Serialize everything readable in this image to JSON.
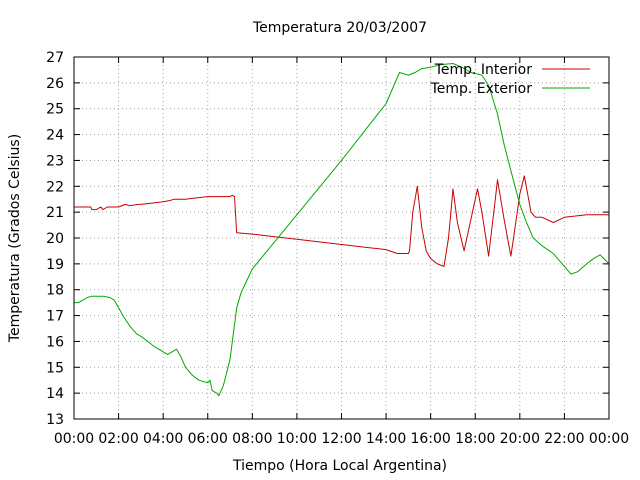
{
  "chart_data": {
    "type": "line",
    "title": "Temperatura 20/03/2007",
    "xlabel": "Tiempo (Hora Local Argentina)",
    "ylabel": "Temperatura (Grados Celsius)",
    "xlim": [
      0,
      24
    ],
    "ylim": [
      13,
      27
    ],
    "x_ticks": [
      0,
      2,
      4,
      6,
      8,
      10,
      12,
      14,
      16,
      18,
      20,
      22,
      24
    ],
    "x_tick_labels": [
      "00:00",
      "02:00",
      "04:00",
      "06:00",
      "08:00",
      "10:00",
      "12:00",
      "14:00",
      "16:00",
      "18:00",
      "20:00",
      "22:00",
      "00:00"
    ],
    "y_ticks": [
      13,
      14,
      15,
      16,
      17,
      18,
      19,
      20,
      21,
      22,
      23,
      24,
      25,
      26,
      27
    ],
    "y_tick_labels": [
      "13",
      "14",
      "15",
      "16",
      "17",
      "18",
      "19",
      "20",
      "21",
      "22",
      "23",
      "24",
      "25",
      "26",
      "27"
    ],
    "grid": true,
    "legend_position": "top-right",
    "series": [
      {
        "name": "Temp. Interior",
        "color": "#cc0000",
        "x": [
          0,
          0.75,
          0.8,
          1.0,
          1.2,
          1.3,
          1.5,
          1.6,
          2.0,
          2.3,
          2.5,
          2.9,
          3.0,
          3.5,
          4.0,
          4.3,
          4.5,
          5.0,
          5.5,
          6.0,
          6.5,
          7.0,
          7.1,
          7.2,
          7.3,
          8.0,
          9.0,
          10.0,
          11.0,
          12.0,
          13.0,
          14.0,
          14.5,
          15.0,
          15.05,
          15.2,
          15.4,
          15.6,
          15.8,
          16.0,
          16.3,
          16.6,
          16.8,
          17.0,
          17.2,
          17.5,
          17.9,
          18.1,
          18.3,
          18.6,
          18.9,
          19.0,
          19.3,
          19.6,
          19.8,
          20.0,
          20.2,
          20.5,
          20.7,
          21.0,
          21.5,
          22.0,
          23.0,
          24.0
        ],
        "y": [
          21.2,
          21.2,
          21.1,
          21.1,
          21.2,
          21.1,
          21.2,
          21.2,
          21.2,
          21.3,
          21.25,
          21.3,
          21.3,
          21.35,
          21.4,
          21.45,
          21.5,
          21.5,
          21.55,
          21.6,
          21.6,
          21.6,
          21.65,
          21.6,
          20.2,
          20.15,
          20.05,
          19.95,
          19.85,
          19.75,
          19.65,
          19.55,
          19.4,
          19.4,
          19.5,
          21.0,
          22.0,
          20.4,
          19.5,
          19.2,
          19.0,
          18.9,
          20.0,
          21.9,
          20.6,
          19.5,
          21.1,
          21.9,
          21.0,
          19.3,
          21.5,
          22.25,
          20.7,
          19.3,
          20.5,
          21.7,
          22.4,
          21.0,
          20.8,
          20.8,
          20.6,
          20.8,
          20.9,
          20.9
        ]
      },
      {
        "name": "Temp. Exterior",
        "color": "#00aa00",
        "x": [
          0,
          0.2,
          0.4,
          0.6,
          0.8,
          1.0,
          1.3,
          1.6,
          1.8,
          2.0,
          2.2,
          2.5,
          2.8,
          3.0,
          3.3,
          3.6,
          4.0,
          4.2,
          4.4,
          4.6,
          4.8,
          5.0,
          5.3,
          5.6,
          6.0,
          6.1,
          6.2,
          6.3,
          6.4,
          6.5,
          6.7,
          7.0,
          7.3,
          7.5,
          8.0,
          10.0,
          12.0,
          14.0,
          14.6,
          15.0,
          15.3,
          15.6,
          16.0,
          16.4,
          17.0,
          17.4,
          17.8,
          18.3,
          18.6,
          19.0,
          19.3,
          19.6,
          20.0,
          20.3,
          20.6,
          21.0,
          21.5,
          22.0,
          22.3,
          22.6,
          23.0,
          23.3,
          23.6,
          24.0
        ],
        "y": [
          17.5,
          17.5,
          17.6,
          17.7,
          17.75,
          17.75,
          17.75,
          17.7,
          17.6,
          17.3,
          17.0,
          16.6,
          16.3,
          16.2,
          16.0,
          15.8,
          15.6,
          15.5,
          15.6,
          15.7,
          15.4,
          15.0,
          14.7,
          14.5,
          14.4,
          14.5,
          14.1,
          14.05,
          14.0,
          13.9,
          14.3,
          15.3,
          17.3,
          17.9,
          18.8,
          20.9,
          23.0,
          25.2,
          26.4,
          26.3,
          26.4,
          26.55,
          26.6,
          26.7,
          26.75,
          26.6,
          26.4,
          26.3,
          25.9,
          24.8,
          23.6,
          22.6,
          21.3,
          20.6,
          20.0,
          19.7,
          19.4,
          18.9,
          18.6,
          18.7,
          19.0,
          19.2,
          19.35,
          19.0
        ]
      }
    ]
  }
}
